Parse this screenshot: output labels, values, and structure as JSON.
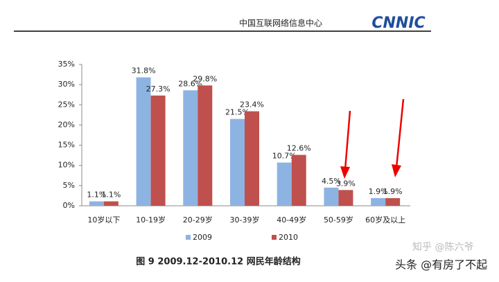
{
  "header": {
    "title": "中国互联网络信息中心",
    "logo": "CNNIC"
  },
  "chart_data": {
    "type": "bar",
    "categories": [
      "10岁以下",
      "10-19岁",
      "20-29岁",
      "30-39岁",
      "40-49岁",
      "50-59岁",
      "60岁及以上"
    ],
    "series": [
      {
        "name": "2009",
        "color": "#8db3e2",
        "values": [
          1.1,
          31.8,
          28.6,
          21.5,
          10.7,
          4.5,
          1.9
        ],
        "value_labels": [
          "1.1%",
          "31.8%",
          "28.6%",
          "21.5%",
          "10.7%",
          "4.5%",
          "1.9%"
        ]
      },
      {
        "name": "2010",
        "color": "#c0504d",
        "values": [
          1.1,
          27.3,
          29.8,
          23.4,
          12.6,
          3.9,
          1.9
        ],
        "value_labels": [
          "1.1%",
          "27.3%",
          "29.8%",
          "23.4%",
          "12.6%",
          "3.9%",
          "1.9%"
        ]
      }
    ],
    "ylim": [
      0,
      35
    ],
    "yticks": [
      {
        "value": 0,
        "label": "0%"
      },
      {
        "value": 5,
        "label": "5%"
      },
      {
        "value": 10,
        "label": "10%"
      },
      {
        "value": 15,
        "label": "15%"
      },
      {
        "value": 20,
        "label": "20%"
      },
      {
        "value": 25,
        "label": "25%"
      },
      {
        "value": 30,
        "label": "30%"
      },
      {
        "value": 35,
        "label": "35%"
      }
    ],
    "grid": false,
    "legend": "bottom"
  },
  "caption": "图 9 2009.12-2010.12 网民年龄结构",
  "watermarks": [
    "知乎 @陈六爷",
    "头条 @有房了不起"
  ]
}
